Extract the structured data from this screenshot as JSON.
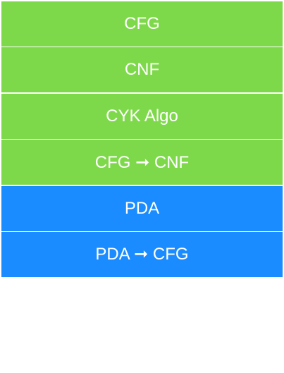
{
  "menu": {
    "items": [
      {
        "label": "CFG",
        "group": "green"
      },
      {
        "label": "CNF",
        "group": "green"
      },
      {
        "label": "CYK Algo",
        "group": "green"
      },
      {
        "label": "CFG ➞ CNF",
        "group": "green"
      },
      {
        "label": "PDA",
        "group": "blue"
      },
      {
        "label": "PDA ➞ CFG",
        "group": "blue"
      }
    ]
  },
  "colors": {
    "green": "#7ed94a",
    "blue": "#1a8cff",
    "text": "#ffffff"
  }
}
